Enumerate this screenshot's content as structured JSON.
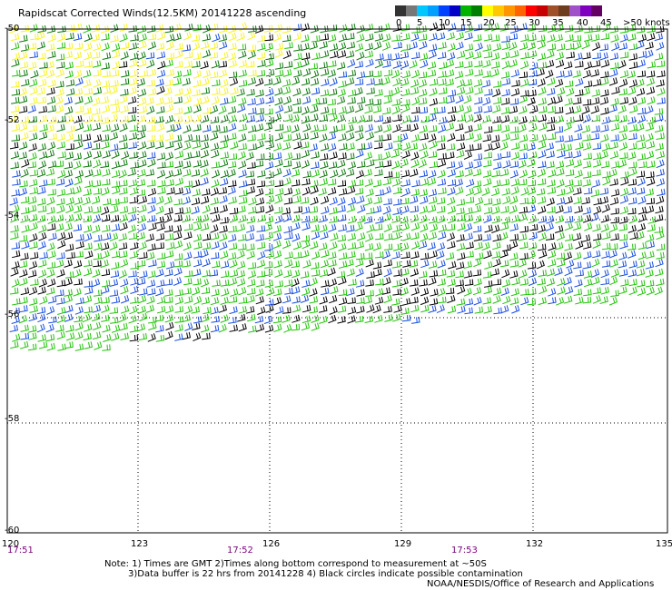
{
  "title": "Rapidscat Corrected Winds(12.5KM) 20141228 ascending",
  "legend": {
    "colors": [
      "#333333",
      "#777777",
      "#00c8ff",
      "#00a0ff",
      "#0040ff",
      "#0000c8",
      "#00b400",
      "#008000",
      "#ffff00",
      "#ffc800",
      "#ff9600",
      "#ff6400",
      "#ff0000",
      "#c80000",
      "#a05028",
      "#6e3c1e",
      "#a050c8",
      "#8000c0",
      "#640064"
    ],
    "labels": [
      "0",
      "5",
      "10",
      "15",
      "20",
      "25",
      "30",
      "35",
      "40",
      "45",
      ">50 knots"
    ]
  },
  "axes": {
    "lat_labels": [
      "-50",
      "-52",
      "-54",
      "-56",
      "-58",
      "-60"
    ],
    "lon_labels": [
      "120",
      "123",
      "126",
      "129",
      "132",
      "135"
    ],
    "times": [
      "17:51",
      "17:52",
      "17:53"
    ]
  },
  "map": {
    "lat_range": [
      -60,
      -50
    ],
    "lon_range": [
      120,
      135
    ],
    "speed_colors": {
      "slow": "#000000",
      "mid": "#1a4fe0",
      "fresh": "#22c40a",
      "strong": "#0d7a0d",
      "gale": "#f7f320"
    }
  },
  "notes": {
    "line1": "Note: 1) Times are GMT 2)Times along bottom correspond to measurement at ~50S",
    "line2": "3)Data buffer is 22 hrs from 20141228 4) Black circles indicate possible contamination",
    "credit": "NOAA/NESDIS/Office of Research and Applications"
  }
}
